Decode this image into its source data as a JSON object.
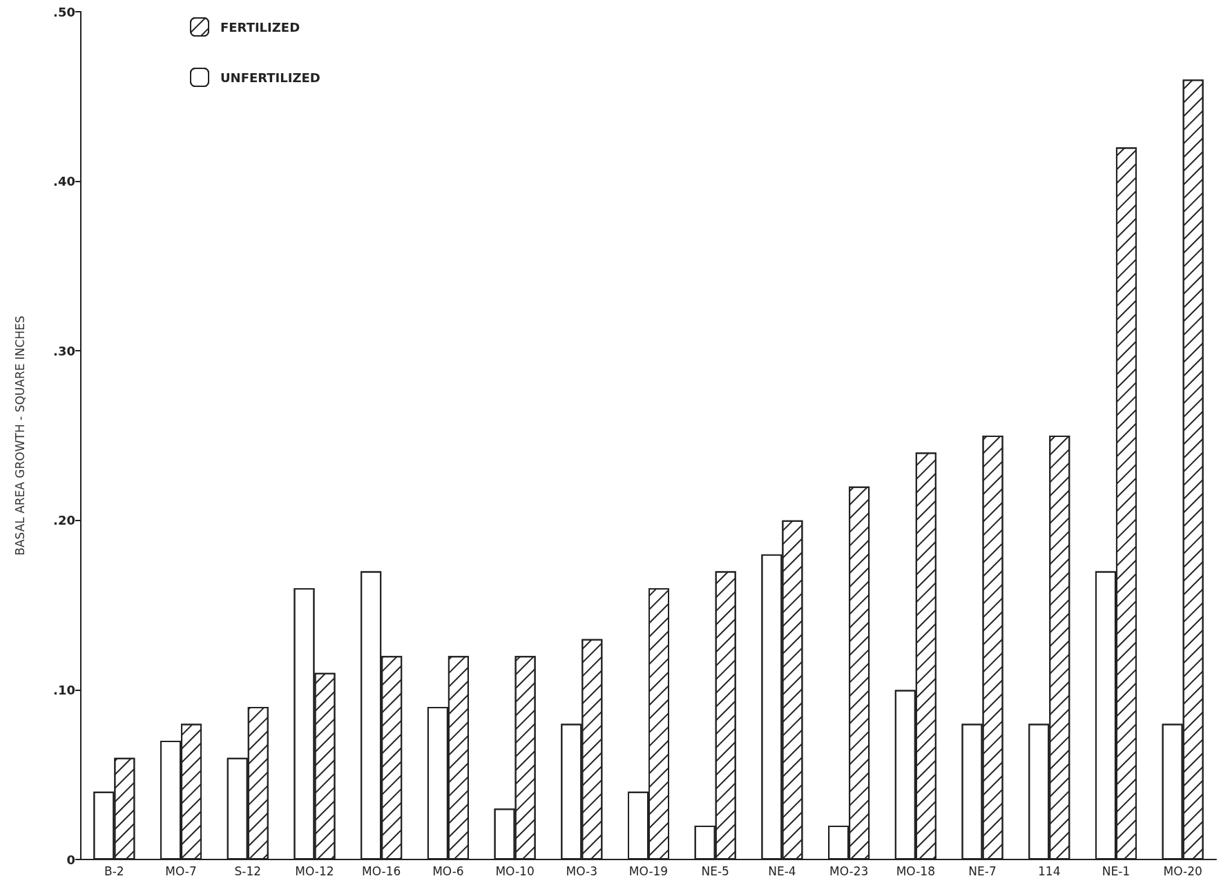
{
  "chart_data": {
    "type": "bar",
    "ylabel": "BASAL AREA GROWTH - SQUARE INCHES",
    "categories": [
      "B-2",
      "MO-7",
      "S-12",
      "MO-12",
      "MO-16",
      "MO-6",
      "MO-10",
      "MO-3",
      "MO-19",
      "NE-5",
      "NE-4",
      "MO-23",
      "MO-18",
      "NE-7",
      "114",
      "NE-1",
      "MO-20"
    ],
    "series": [
      {
        "name": "UNFERTILIZED",
        "color": "#ffffff",
        "values": [
          0.04,
          0.07,
          0.06,
          0.16,
          0.17,
          0.09,
          0.03,
          0.08,
          0.04,
          0.02,
          0.18,
          0.02,
          0.1,
          0.08,
          0.08,
          0.17,
          0.08
        ]
      },
      {
        "name": "FERTILIZED",
        "color": "#ffffff",
        "values": [
          0.06,
          0.08,
          0.09,
          0.11,
          0.12,
          0.12,
          0.12,
          0.13,
          0.16,
          0.17,
          0.2,
          0.22,
          0.24,
          0.25,
          0.25,
          0.42,
          0.46
        ]
      }
    ],
    "ylim": [
      0,
      0.5
    ],
    "yticks": [
      {
        "value": 0,
        "label": "0"
      },
      {
        "value": 0.1,
        "label": ".10"
      },
      {
        "value": 0.2,
        "label": ".20"
      },
      {
        "value": 0.3,
        "label": ".30"
      },
      {
        "value": 0.4,
        "label": ".40"
      },
      {
        "value": 0.5,
        "label": ".50"
      }
    ],
    "grid": false,
    "legend": "top left"
  }
}
